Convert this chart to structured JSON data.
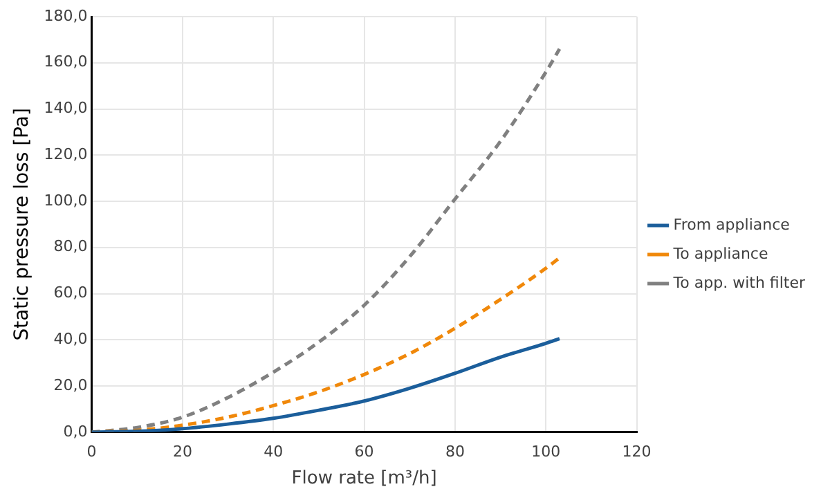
{
  "chart_data": {
    "type": "line",
    "xlabel": "Flow rate [m³/h]",
    "ylabel": "Static pressure loss [Pa]",
    "x": [
      0,
      10,
      20,
      30,
      40,
      50,
      60,
      70,
      80,
      90,
      100,
      103
    ],
    "series": [
      {
        "name": "From appliance",
        "color": "#1b5e9b",
        "line_style": "solid",
        "values": [
          0,
          0.4,
          1.5,
          3.5,
          6,
          9.5,
          13.5,
          19,
          25.5,
          32.5,
          38.5,
          40.5
        ]
      },
      {
        "name": "To appliance",
        "color": "#f0880a",
        "line_style": "dashed",
        "values": [
          0,
          0.8,
          3,
          6.5,
          11.5,
          17.5,
          25,
          34,
          45,
          57.5,
          71,
          75.5
        ]
      },
      {
        "name": "To app. with filter",
        "color": "#808080",
        "line_style": "dashed",
        "values": [
          0,
          2,
          6.5,
          15,
          26,
          39,
          55,
          76,
          101,
          126,
          156,
          166
        ]
      }
    ],
    "xlim": [
      0,
      120
    ],
    "xticks": [
      0,
      20,
      40,
      60,
      80,
      100,
      120
    ],
    "ylim": [
      0,
      180
    ],
    "yticks": [
      {
        "value": 0,
        "label": "0,0"
      },
      {
        "value": 20,
        "label": "20,0"
      },
      {
        "value": 40,
        "label": "40,0"
      },
      {
        "value": 60,
        "label": "60,0"
      },
      {
        "value": 80,
        "label": "80,0"
      },
      {
        "value": 100,
        "label": "100,0"
      },
      {
        "value": 120,
        "label": "120,0"
      },
      {
        "value": 140,
        "label": "140,0"
      },
      {
        "value": 160,
        "label": "160,0"
      },
      {
        "value": 180,
        "label": "180,0"
      }
    ],
    "grid": true,
    "legend": "right",
    "marker": "none"
  }
}
